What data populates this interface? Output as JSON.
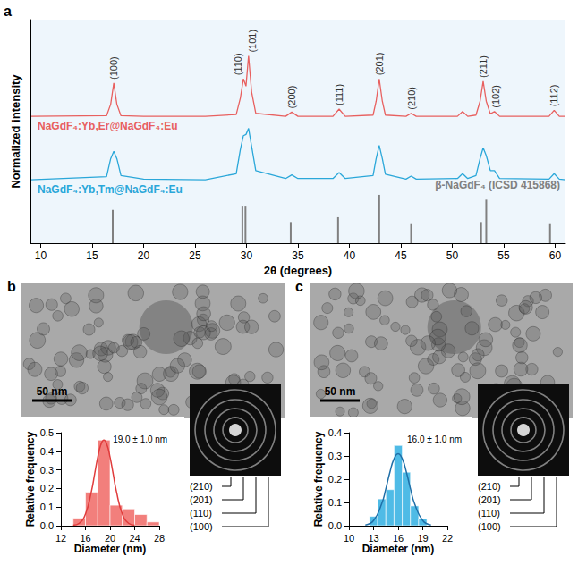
{
  "chart_data": [
    {
      "panel": "a",
      "type": "line",
      "xlabel": "2θ (degrees)",
      "ylabel": "Normalized intensity",
      "xlim": [
        9,
        61
      ],
      "xticks": [
        10,
        15,
        20,
        25,
        30,
        35,
        40,
        45,
        50,
        55,
        60
      ],
      "ylim": [
        0,
        3.7
      ],
      "tick_labels": "x",
      "grid": false,
      "x": [
        9,
        16.4,
        16.8,
        17.1,
        17.4,
        17.8,
        20,
        26,
        29.0,
        29.4,
        29.7,
        29.95,
        30.2,
        30.5,
        30.9,
        33.8,
        34.4,
        35.0,
        38.4,
        39.0,
        39.6,
        42.3,
        42.6,
        42.9,
        43.2,
        43.5,
        45.5,
        46.0,
        46.5,
        50.5,
        51.0,
        51.5,
        52.3,
        52.7,
        53.0,
        53.3,
        53.7,
        54.1,
        54.6,
        59.4,
        59.9,
        60.4,
        61
      ],
      "series": [
        {
          "name": "NaGdF₄:Yb,Er@NaGdF₄:Eu",
          "color": "#e8605f",
          "values": [
            2.1,
            2.11,
            2.3,
            2.65,
            2.3,
            2.11,
            2.1,
            2.1,
            2.13,
            2.4,
            2.72,
            2.6,
            3.1,
            2.5,
            2.15,
            2.1,
            2.17,
            2.1,
            2.1,
            2.22,
            2.1,
            2.12,
            2.35,
            2.72,
            2.35,
            2.12,
            2.1,
            2.15,
            2.1,
            2.1,
            2.18,
            2.1,
            2.12,
            2.35,
            2.68,
            2.35,
            2.14,
            2.18,
            2.1,
            2.1,
            2.2,
            2.1,
            2.1
          ]
        },
        {
          "name": "NaGdF₄:Yb,Tm@NaGdF₄:Eu",
          "color": "#2aa7d9",
          "values": [
            1.05,
            1.1,
            1.4,
            1.52,
            1.4,
            1.12,
            1.06,
            1.05,
            1.15,
            1.55,
            1.78,
            1.8,
            1.9,
            1.6,
            1.2,
            1.07,
            1.13,
            1.07,
            1.07,
            1.17,
            1.07,
            1.12,
            1.4,
            1.62,
            1.4,
            1.14,
            1.06,
            1.11,
            1.06,
            1.07,
            1.15,
            1.07,
            1.12,
            1.4,
            1.58,
            1.45,
            1.2,
            1.2,
            1.07,
            1.06,
            1.15,
            1.06,
            1.05
          ]
        },
        {
          "name": "β-NaGdF₄ (ICSD 415868)",
          "color": "#808080",
          "type": "bar",
          "x": [
            17.0,
            29.6,
            29.9,
            34.3,
            38.9,
            42.9,
            46.0,
            52.8,
            53.3,
            59.5
          ],
          "values": [
            0.55,
            0.62,
            0.62,
            0.35,
            0.43,
            0.8,
            0.33,
            0.35,
            0.72,
            0.33
          ]
        }
      ],
      "annotations": [
        {
          "text": "(100)",
          "x": 17.1
        },
        {
          "text": "(110)",
          "x": 29.2
        },
        {
          "text": "(101)",
          "x": 30.6
        },
        {
          "text": "(200)",
          "x": 34.4
        },
        {
          "text": "(111)",
          "x": 39.0
        },
        {
          "text": "(201)",
          "x": 42.9
        },
        {
          "text": "(210)",
          "x": 46.0
        },
        {
          "text": "(211)",
          "x": 53.0
        },
        {
          "text": "(102)",
          "x": 54.2
        },
        {
          "text": "(112)",
          "x": 59.9
        }
      ]
    },
    {
      "panel": "b",
      "type": "histogram",
      "xlabel": "Diameter (nm)",
      "ylabel": "Relative frequency",
      "xlim": [
        12,
        28
      ],
      "xticks": [
        12,
        16,
        20,
        24,
        28
      ],
      "ylim": [
        0,
        0.5
      ],
      "yticks": [
        {
          "value": 0,
          "label": "0.0"
        },
        0.1,
        0.2,
        0.3,
        0.4,
        0.5
      ],
      "bins": [
        14,
        16,
        18,
        20,
        22,
        24,
        26,
        28
      ],
      "counts": [
        0.04,
        0.18,
        0.46,
        0.11,
        0.09,
        0.06,
        0.02
      ],
      "color": "#f27f7c",
      "fit": {
        "label": "19.0 ± 1.0 nm",
        "color": "#e03c3c",
        "x": [
          14,
          15,
          16,
          17,
          17.5,
          18,
          18.5,
          19,
          19.5,
          20,
          20.5,
          21,
          22,
          23,
          24
        ],
        "values": [
          0.002,
          0.013,
          0.062,
          0.189,
          0.279,
          0.368,
          0.435,
          0.46,
          0.435,
          0.368,
          0.279,
          0.189,
          0.062,
          0.013,
          0.002
        ]
      },
      "image": {
        "scale_bar": "50 nm",
        "saed_rings": [
          "(210)",
          "(201)",
          "(110)",
          "(100)"
        ]
      }
    },
    {
      "panel": "c",
      "type": "histogram",
      "xlabel": "Diameter (nm)",
      "ylabel": "Relative frequency",
      "xlim": [
        10,
        22
      ],
      "xticks": [
        10,
        13,
        16,
        19,
        22
      ],
      "ylim": [
        0,
        0.4
      ],
      "yticks": [
        {
          "value": 0,
          "label": "0.0"
        },
        0.1,
        0.2,
        0.3,
        0.4
      ],
      "bins": [
        12.5,
        13.5,
        14.5,
        15.5,
        16.5,
        17.5,
        18.5,
        19.5
      ],
      "counts": [
        0.04,
        0.115,
        0.155,
        0.345,
        0.23,
        0.085,
        0.03
      ],
      "color": "#4fbbe6",
      "fit": {
        "label": "16.0 ± 1.0 nm",
        "color": "#1f6fa8",
        "x": [
          12,
          13,
          14,
          14.5,
          15,
          15.5,
          16,
          16.5,
          17,
          17.5,
          18,
          19,
          20
        ],
        "values": [
          0.003,
          0.022,
          0.095,
          0.159,
          0.231,
          0.288,
          0.31,
          0.288,
          0.231,
          0.159,
          0.095,
          0.022,
          0.003
        ]
      },
      "image": {
        "scale_bar": "50 nm",
        "saed_rings": [
          "(210)",
          "(201)",
          "(110)",
          "(100)"
        ]
      }
    }
  ]
}
